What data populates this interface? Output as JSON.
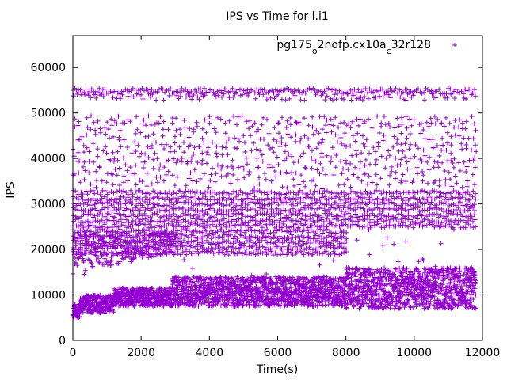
{
  "chart_data": {
    "type": "scatter",
    "title": "IPS vs Time for l.i1",
    "xlabel": "Time(s)",
    "ylabel": "IPS",
    "xlim": [
      0,
      12000
    ],
    "ylim": [
      0,
      67000
    ],
    "x_ticks": [
      0,
      2000,
      4000,
      6000,
      8000,
      10000,
      12000
    ],
    "y_ticks": [
      0,
      10000,
      20000,
      30000,
      40000,
      50000,
      60000
    ],
    "grid": false,
    "legend_position": "top-right",
    "marker": "plus",
    "series": [
      {
        "name": "pg175_o2nofp.cx10a_c32r128",
        "color": "#9400d3",
        "x_range": [
          0,
          11800
        ],
        "bands": [
          {
            "label": "dense low cluster",
            "x": [
              0,
              2900
            ],
            "y": [
              5000,
              12000
            ]
          },
          {
            "label": "dense low cluster",
            "x": [
              2900,
              8000
            ],
            "y": [
              7000,
              14500
            ]
          },
          {
            "label": "dense low cluster",
            "x": [
              8000,
              11800
            ],
            "y": [
              7000,
              16000
            ]
          },
          {
            "label": "mid rows",
            "x": [
              0,
              4000
            ],
            "y": [
              14000,
              33000
            ]
          },
          {
            "label": "mid rows",
            "x": [
              4000,
              8000
            ],
            "y": [
              18000,
              32000
            ]
          },
          {
            "label": "mid rows",
            "x": [
              8000,
              11800
            ],
            "y": [
              26000,
              32000
            ]
          },
          {
            "label": "upper rows",
            "x": [
              0,
              11800
            ],
            "y": [
              33000,
              50000
            ]
          },
          {
            "label": "top rows",
            "x": [
              0,
              11800
            ],
            "y": [
              52000,
              56000
            ]
          }
        ]
      }
    ]
  }
}
